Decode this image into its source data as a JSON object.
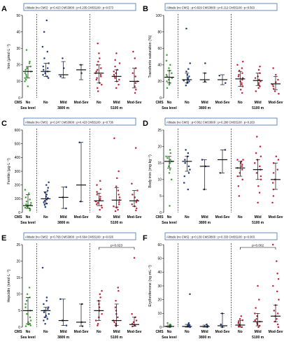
{
  "figure": {
    "group_labels": {
      "cms": "CMS",
      "no": "No",
      "mild": "Mild",
      "mod_sev": "Mod-Sev",
      "sea_level": "Sea level",
      "alt_3800": "3800 m",
      "alt_5100": "5100 m"
    },
    "colors": {
      "sea_level": "#3aa534",
      "alt_3800": "#1f3d8a",
      "alt_5100": "#c2263c",
      "summary": "#111111",
      "box": "#1f5fa8"
    }
  },
  "chart_data": [
    {
      "type": "scatter",
      "panel": "A",
      "ylabel": "Iron (µmol·L⁻¹)",
      "ylim": [
        0,
        50
      ],
      "yticks": [
        0,
        10,
        20,
        30,
        40,
        50
      ],
      "stats_text": "Altitude (no CMS) : p=0.423     CMS3800 : p=0.235     CMS5100 : p=0.573",
      "bracket": null,
      "groups": [
        {
          "name": "Sea level No",
          "values": [
            10,
            11,
            12,
            13,
            14,
            15,
            16,
            17,
            18,
            19,
            21,
            22,
            7,
            29
          ],
          "median": 16,
          "iqr": [
            12,
            19
          ]
        },
        {
          "name": "3800 m No",
          "values": [
            12,
            13,
            14,
            15,
            16,
            17,
            18,
            19,
            21,
            24,
            28,
            31,
            40,
            47
          ],
          "median": 16,
          "iqr": [
            13,
            21
          ]
        },
        {
          "name": "3800 m Mild",
          "values": [
            13,
            18,
            24
          ],
          "median": 14,
          "iqr": [
            12,
            22
          ]
        },
        {
          "name": "3800 m Mod-Sev",
          "values": [
            15,
            20
          ],
          "median": 17,
          "iqr": [
            11,
            20
          ]
        },
        {
          "name": "5100 m No",
          "values": [
            4,
            6,
            8,
            9,
            11,
            12,
            13,
            14,
            15,
            16,
            17,
            18,
            20,
            22,
            24,
            27,
            33
          ],
          "median": 15,
          "iqr": [
            9,
            20
          ]
        },
        {
          "name": "5100 m Mild",
          "values": [
            6,
            8,
            10,
            11,
            12,
            13,
            14,
            15,
            16,
            17,
            19,
            21,
            23,
            27
          ],
          "median": 13,
          "iqr": [
            10,
            17
          ]
        },
        {
          "name": "5100 m Mod-Sev",
          "values": [
            3,
            5,
            7,
            9,
            10,
            13,
            15,
            18,
            24,
            28
          ],
          "median": 10,
          "iqr": [
            6,
            18
          ]
        }
      ]
    },
    {
      "type": "scatter",
      "panel": "B",
      "ylabel": "Transferrin saturation (%)",
      "ylim": [
        0,
        100
      ],
      "yticks": [
        0,
        20,
        40,
        60,
        80,
        100
      ],
      "stats_text": "Altitude (no CMS) : p=0.829     CMS3800 : p=0.212     CMS5100 : p=0.563",
      "bracket": null,
      "groups": [
        {
          "name": "Sea level No",
          "values": [
            12,
            16,
            18,
            20,
            22,
            24,
            26,
            28,
            30,
            33,
            36,
            40,
            45,
            52
          ],
          "median": 25,
          "iqr": [
            18,
            33
          ]
        },
        {
          "name": "3800 m No",
          "values": [
            15,
            18,
            19,
            20,
            21,
            22,
            24,
            26,
            28,
            32,
            35,
            42,
            84
          ],
          "median": 22,
          "iqr": [
            18,
            30
          ]
        },
        {
          "name": "3800 m Mild",
          "values": [
            20,
            30,
            42
          ],
          "median": 22,
          "iqr": [
            19,
            30
          ]
        },
        {
          "name": "3800 m Mod-Sev",
          "values": [
            18,
            27
          ],
          "median": 22,
          "iqr": [
            16,
            28
          ]
        },
        {
          "name": "5100 m No",
          "values": [
            6,
            10,
            14,
            16,
            18,
            20,
            22,
            24,
            26,
            28,
            30,
            33,
            36,
            40,
            44
          ],
          "median": 23,
          "iqr": [
            14,
            32
          ]
        },
        {
          "name": "5100 m Mild",
          "values": [
            8,
            12,
            14,
            16,
            18,
            20,
            22,
            24,
            26,
            30,
            34,
            38
          ],
          "median": 21,
          "iqr": [
            15,
            30
          ]
        },
        {
          "name": "5100 m Mod-Sev",
          "values": [
            5,
            8,
            11,
            14,
            16,
            19,
            22,
            28,
            36
          ],
          "median": 17,
          "iqr": [
            10,
            26
          ]
        }
      ]
    },
    {
      "type": "scatter",
      "panel": "C",
      "ylabel": "Ferritin (µg·L⁻¹)",
      "ylim": [
        0,
        600
      ],
      "yticks": [
        0,
        100,
        200,
        300,
        400,
        500,
        600
      ],
      "stats_text": "Altitude (no CMS) : p=0.247     CMS3800 : p=0.423     CMS5100 : p=0.736",
      "bracket": null,
      "groups": [
        {
          "name": "Sea level No",
          "values": [
            15,
            25,
            30,
            35,
            40,
            45,
            50,
            55,
            60,
            70,
            80,
            95,
            110,
            140,
            165
          ],
          "median": 50,
          "iqr": [
            30,
            130
          ]
        },
        {
          "name": "3800 m No",
          "values": [
            40,
            55,
            65,
            75,
            85,
            95,
            105,
            115,
            130,
            145,
            160,
            180,
            200,
            220
          ],
          "median": 100,
          "iqr": [
            65,
            150
          ]
        },
        {
          "name": "3800 m Mild",
          "values": [
            30,
            110,
            185
          ],
          "median": 110,
          "iqr": [
            30,
            185
          ]
        },
        {
          "name": "3800 m Mod-Sev",
          "values": [
            80,
            510
          ],
          "median": 200,
          "iqr": [
            80,
            510
          ]
        },
        {
          "name": "5100 m No",
          "values": [
            20,
            35,
            50,
            60,
            70,
            80,
            90,
            100,
            115,
            130,
            150,
            170,
            200,
            230
          ],
          "median": 85,
          "iqr": [
            50,
            140
          ]
        },
        {
          "name": "5100 m Mild",
          "values": [
            10,
            20,
            35,
            45,
            60,
            75,
            90,
            110,
            130,
            160,
            190,
            250,
            300,
            540
          ],
          "median": 90,
          "iqr": [
            40,
            180
          ]
        },
        {
          "name": "5100 m Mod-Sev",
          "values": [
            15,
            30,
            45,
            60,
            75,
            90,
            110,
            130,
            160,
            210,
            470
          ],
          "median": 85,
          "iqr": [
            45,
            160
          ]
        }
      ]
    },
    {
      "type": "scatter",
      "panel": "D",
      "ylabel": "Body iron (mg·kg⁻¹)",
      "ylim": [
        0,
        25
      ],
      "yticks": [
        0,
        5,
        10,
        15,
        20,
        25
      ],
      "stats_text": "Altitude (no CMS) : p=0.062     CMS3800 : p=0.280     CMS5100 : p=0.263",
      "bracket": null,
      "groups": [
        {
          "name": "Sea level No",
          "values": [
            2,
            10,
            12,
            13,
            14,
            15,
            15.5,
            16,
            16.5,
            17,
            18,
            19
          ],
          "median": 15.5,
          "iqr": [
            13.5,
            17
          ]
        },
        {
          "name": "3800 m No",
          "values": [
            7,
            9,
            11,
            12,
            13,
            14,
            15,
            16,
            17,
            18,
            19
          ],
          "median": 15.5,
          "iqr": [
            12.5,
            17
          ]
        },
        {
          "name": "3800 m Mild",
          "values": [
            7,
            14,
            16
          ],
          "median": 14,
          "iqr": [
            7,
            16
          ]
        },
        {
          "name": "3800 m Mod-Sev",
          "values": [
            12,
            19
          ],
          "median": 16,
          "iqr": [
            12,
            19
          ]
        },
        {
          "name": "5100 m No",
          "values": [
            5,
            8,
            10,
            11,
            12,
            13,
            13.5,
            14,
            14.5,
            15,
            15.5,
            16,
            16
          ],
          "median": 13.5,
          "iqr": [
            11,
            15.5
          ]
        },
        {
          "name": "5100 m Mild",
          "values": [
            3,
            6,
            8,
            10,
            11,
            12,
            13,
            14,
            15,
            16,
            17,
            18,
            20,
            23
          ],
          "median": 13,
          "iqr": [
            10,
            16
          ]
        },
        {
          "name": "5100 m Mod-Sev",
          "values": [
            3,
            5,
            7,
            9,
            10,
            12,
            13,
            15,
            16,
            17
          ],
          "median": 10,
          "iqr": [
            7,
            15
          ]
        }
      ]
    },
    {
      "type": "scatter",
      "panel": "E",
      "ylabel": "Hepcidin (nmol·L⁻¹)",
      "ylim": [
        0,
        25
      ],
      "yticks": [
        0,
        5,
        10,
        15,
        20,
        25
      ],
      "stats_text": "Altitude (no CMS) : p=0.768     CMS3800 : p=0.664     CMS5100 : p=0.026",
      "bracket": {
        "from": 4,
        "to": 6,
        "label": "p=0.023"
      },
      "groups": [
        {
          "name": "Sea level No",
          "values": [
            0.3,
            0.5,
            0.8,
            1,
            1.5,
            2,
            3,
            4,
            5,
            6,
            7,
            8,
            9,
            10,
            12
          ],
          "median": 5,
          "iqr": [
            1,
            9
          ]
        },
        {
          "name": "3800 m No",
          "values": [
            1,
            2,
            2.5,
            3,
            3.5,
            4,
            4.5,
            5,
            5.5,
            6,
            7,
            8,
            9,
            18
          ],
          "median": 5,
          "iqr": [
            3,
            6
          ]
        },
        {
          "name": "3800 m Mild",
          "values": [
            0.5,
            2,
            8.5
          ],
          "median": 2,
          "iqr": [
            0.5,
            8.5
          ]
        },
        {
          "name": "3800 m Mod-Sev",
          "values": [
            0.3,
            1.5,
            7
          ],
          "median": 1.5,
          "iqr": [
            0.3,
            7
          ]
        },
        {
          "name": "5100 m No",
          "values": [
            0.5,
            1,
            2,
            3,
            4,
            5,
            6,
            7,
            8,
            9,
            10,
            11
          ],
          "median": 5,
          "iqr": [
            2,
            8
          ]
        },
        {
          "name": "5100 m Mild",
          "values": [
            0.3,
            0.5,
            1,
            1.5,
            2,
            3,
            4,
            5,
            6,
            8,
            11,
            12
          ],
          "median": 2,
          "iqr": [
            0.5,
            7
          ]
        },
        {
          "name": "5100 m Mod-Sev",
          "values": [
            0.2,
            0.5,
            1,
            1.5,
            2,
            3,
            4,
            21
          ],
          "median": 0.8,
          "iqr": [
            0.3,
            3
          ]
        }
      ]
    },
    {
      "type": "scatter",
      "panel": "F",
      "ylabel": "Erythroferrone (ng·mL⁻¹)",
      "ylim": [
        0,
        60
      ],
      "yticks": [
        0,
        10,
        20,
        30,
        40,
        50,
        60
      ],
      "stats_text": "Altitude (no CMS) : p=0.130     CMS3800 : p=0.333     CMS5100 : p=0.003",
      "bracket": {
        "from": 4,
        "to": 6,
        "label": "p=0.002"
      },
      "groups": [
        {
          "name": "Sea level No",
          "values": [
            0,
            0.5,
            1,
            1.5,
            2,
            3
          ],
          "median": 0.5,
          "iqr": [
            0,
            1.5
          ]
        },
        {
          "name": "3800 m No",
          "values": [
            0,
            0.5,
            1,
            1.5,
            2,
            3,
            24
          ],
          "median": 0.5,
          "iqr": [
            0,
            2
          ]
        },
        {
          "name": "3800 m Mild",
          "values": [
            0,
            1,
            2
          ],
          "median": 0.5,
          "iqr": [
            0,
            1.5
          ]
        },
        {
          "name": "3800 m Mod-Sev",
          "values": [
            0,
            2,
            10
          ],
          "median": 1,
          "iqr": [
            0,
            10
          ]
        },
        {
          "name": "5100 m No",
          "values": [
            0,
            0.5,
            1,
            2,
            3,
            4,
            5,
            6,
            8
          ],
          "median": 1.5,
          "iqr": [
            0,
            5
          ]
        },
        {
          "name": "5100 m Mild",
          "values": [
            0,
            1,
            2,
            3,
            4,
            5,
            6,
            8,
            10,
            14,
            20,
            30
          ],
          "median": 4,
          "iqr": [
            1,
            10
          ]
        },
        {
          "name": "5100 m Mod-Sev",
          "values": [
            0,
            2,
            4,
            6,
            8,
            10,
            12,
            16,
            20,
            26,
            30,
            35,
            39,
            48,
            60
          ],
          "median": 8,
          "iqr": [
            4,
            16
          ]
        }
      ]
    }
  ]
}
